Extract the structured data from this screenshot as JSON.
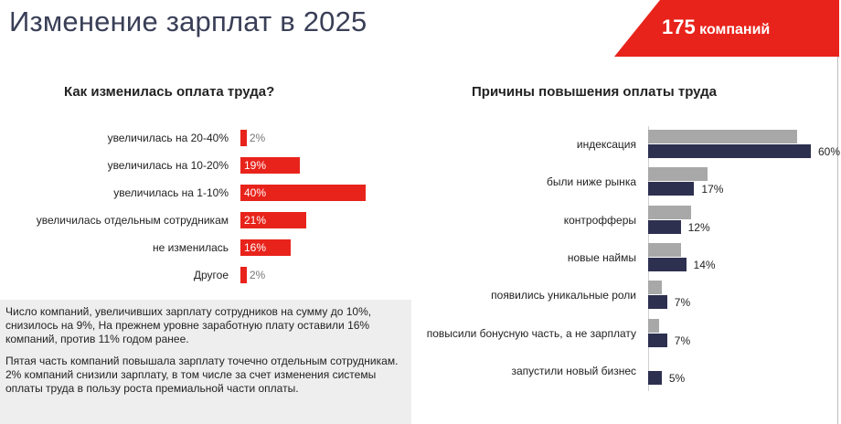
{
  "header": {
    "title": "Изменение зарплат в 2025",
    "badge_number": "175",
    "badge_label": "компаний"
  },
  "colors": {
    "accent_red": "#e8231b",
    "navy": "#2e3050",
    "gray_bar": "#a8a8a8"
  },
  "chart_data": [
    {
      "type": "bar",
      "orientation": "horizontal",
      "title": "Как изменилась оплата труда?",
      "categories": [
        "увеличилась на 20-40%",
        "увеличилась на 10-20%",
        "увеличилась на 1-10%",
        "увеличилась отдельным сотрудникам",
        "не изменилась",
        "Другое"
      ],
      "values": [
        2,
        19,
        40,
        21,
        16,
        2
      ],
      "value_labels": [
        "2%",
        "19%",
        "40%",
        "21%",
        "16%",
        "2%"
      ],
      "xlim": [
        0,
        40
      ],
      "grid": false,
      "legend": "none"
    },
    {
      "type": "bar",
      "orientation": "horizontal",
      "title": "Причины повышения оплаты труда",
      "categories": [
        "индексация",
        "были ниже рынка",
        "контрофферы",
        "новые наймы",
        "появились уникальные роли",
        "повысили бонусную часть, а не зарплату",
        "запустили новый бизнес"
      ],
      "series": [
        {
          "values": [
            55,
            22,
            16,
            12,
            5,
            4,
            null
          ]
        },
        {
          "values": [
            60,
            17,
            12,
            14,
            7,
            7,
            5
          ]
        }
      ],
      "value_labels": [
        "60%",
        "17%",
        "12%",
        "14%",
        "7%",
        "7%",
        "5%"
      ],
      "xlim": [
        0,
        60
      ],
      "grid": false,
      "legend": "none"
    }
  ],
  "note": {
    "paragraph1": "Число компаний, увеличивших зарплату сотрудников на сумму до 10%, снизилось на 9%, На прежнем уровне заработную плату оставили 16% компаний, против 11% годом ранее.",
    "paragraph2": "Пятая часть компаний повышала зарплату точечно отдельным сотрудникам. 2% компаний снизили зарплату, в том числе за счет изменения системы оплаты труда в пользу роста премиальной части оплаты."
  }
}
